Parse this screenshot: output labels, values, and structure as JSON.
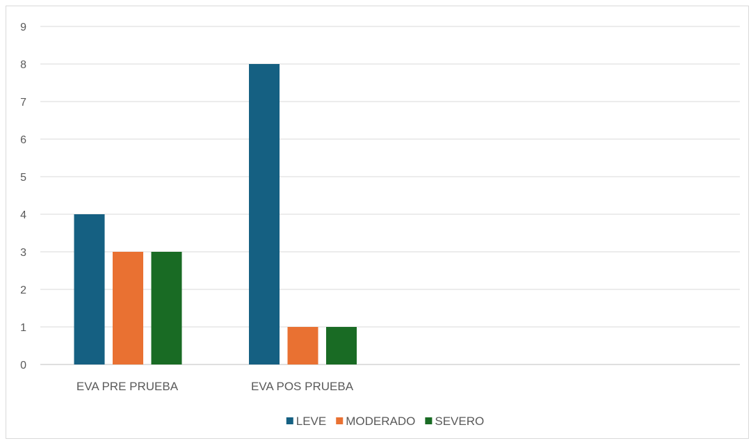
{
  "chart_data": {
    "type": "bar",
    "title": "",
    "xlabel": "",
    "ylabel": "",
    "categories": [
      "EVA PRE PRUEBA",
      "EVA POS PRUEBA"
    ],
    "series": [
      {
        "name": "LEVE",
        "values": [
          4,
          8
        ],
        "color": "#156082"
      },
      {
        "name": "MODERADO",
        "values": [
          3,
          1
        ],
        "color": "#E97132"
      },
      {
        "name": "SEVERO",
        "values": [
          3,
          1
        ],
        "color": "#196B24"
      }
    ],
    "ylim": [
      0,
      9
    ],
    "yticks": [
      "0",
      "1",
      "2",
      "3",
      "4",
      "5",
      "6",
      "7",
      "8",
      "9"
    ],
    "grid": true,
    "legend_position": "bottom"
  }
}
